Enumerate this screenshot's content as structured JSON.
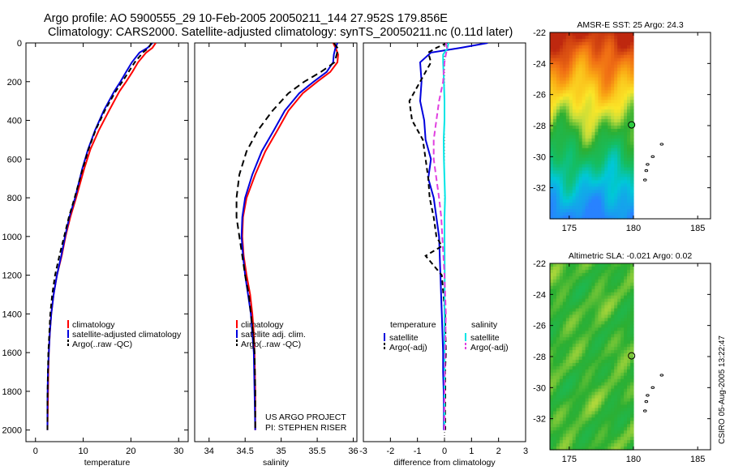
{
  "header": {
    "line1": "Argo profile: AO 5900555_29 10-Feb-2005 20050211_144 27.952S 179.856E",
    "line2": "Climatology: CARS2000. Satellite-adjusted climatology: synTS_20050211.nc (0.11d later)"
  },
  "credit": {
    "line1": "US ARGO PROJECT",
    "line2": "PI: STEPHEN RISER"
  },
  "side_stamp": "CSIRO 05-Aug-2005 13:22:47",
  "colors": {
    "climatology": "#ff0000",
    "satellite": "#0000dd",
    "argo": "#000000",
    "sat_salinity": "#00e5e5",
    "argo_salinity": "#e040e0"
  },
  "chart_data": [
    {
      "id": "temperature",
      "type": "line",
      "xlabel": "temperature",
      "ylabel": "",
      "xlim": [
        -2,
        32
      ],
      "ylim": [
        0,
        2060
      ],
      "y_reversed": true,
      "xticks": [
        0,
        10,
        20,
        30
      ],
      "yticks": [
        0,
        200,
        400,
        600,
        800,
        1000,
        1200,
        1400,
        1600,
        1800,
        2000
      ],
      "legend": {
        "position": "lower-right",
        "entries": [
          "climatology",
          "satellite-adjusted climatology",
          "Argo(..raw -QC)"
        ]
      },
      "series": [
        {
          "name": "climatology",
          "color": "#ff0000",
          "dash": "none",
          "x": [
            25.2,
            24.5,
            23.2,
            21.5,
            20.3,
            19.0,
            17.6,
            15.4,
            13.3,
            11.5,
            10.2,
            8.5,
            7.3,
            6.3,
            5.5,
            4.5,
            3.8,
            3.3,
            3.0,
            2.8,
            2.7,
            2.6,
            2.5
          ],
          "y": [
            0,
            25,
            50,
            100,
            150,
            200,
            250,
            350,
            450,
            550,
            650,
            800,
            900,
            1000,
            1100,
            1200,
            1300,
            1400,
            1500,
            1600,
            1700,
            1850,
            2000
          ]
        },
        {
          "name": "satellite-adjusted climatology",
          "color": "#0000dd",
          "dash": "none",
          "x": [
            24.5,
            23.5,
            21.8,
            20.2,
            19.0,
            17.8,
            16.5,
            14.3,
            12.5,
            11.0,
            9.8,
            8.3,
            7.1,
            6.2,
            5.4,
            4.5,
            3.8,
            3.3,
            3.0,
            2.8,
            2.6,
            2.5,
            2.5
          ],
          "y": [
            0,
            25,
            50,
            100,
            150,
            200,
            250,
            350,
            450,
            550,
            650,
            800,
            900,
            1000,
            1100,
            1200,
            1300,
            1400,
            1500,
            1600,
            1700,
            1850,
            2000
          ]
        },
        {
          "name": "Argo(..raw -QC)",
          "color": "#000000",
          "dash": "6,4",
          "x": [
            24.3,
            23.7,
            22.5,
            20.8,
            19.5,
            18.2,
            16.8,
            14.5,
            12.6,
            11.1,
            9.9,
            8.2,
            7.0,
            6.0,
            5.0,
            4.1,
            3.5,
            3.1,
            2.9,
            2.7,
            2.6,
            2.5,
            2.5
          ],
          "y": [
            0,
            25,
            50,
            100,
            150,
            200,
            250,
            350,
            450,
            550,
            650,
            800,
            900,
            1000,
            1100,
            1200,
            1300,
            1400,
            1500,
            1600,
            1700,
            1850,
            2000
          ]
        }
      ]
    },
    {
      "id": "salinity",
      "type": "line",
      "xlabel": "salinity",
      "ylabel": "",
      "xlim": [
        33.8,
        36.05
      ],
      "ylim": [
        0,
        2060
      ],
      "y_reversed": true,
      "xticks": [
        34,
        34.5,
        35,
        35.5,
        36
      ],
      "yticks": [],
      "legend": {
        "position": "lower-right",
        "entries": [
          "climatology",
          "satellite adj. clim.",
          "Argo(..raw -QC)"
        ]
      },
      "series": [
        {
          "name": "climatology",
          "color": "#ff0000",
          "dash": "none",
          "x": [
            35.72,
            35.76,
            35.79,
            35.78,
            35.68,
            35.5,
            35.3,
            35.1,
            34.95,
            34.78,
            34.64,
            34.52,
            34.47,
            34.46,
            34.48,
            34.52,
            34.57,
            34.6,
            34.62,
            34.63,
            34.64,
            34.64
          ],
          "y": [
            0,
            30,
            60,
            100,
            150,
            200,
            260,
            350,
            450,
            560,
            680,
            800,
            900,
            1000,
            1100,
            1200,
            1300,
            1400,
            1500,
            1600,
            1800,
            2000
          ]
        },
        {
          "name": "satellite adj. clim.",
          "color": "#0000dd",
          "dash": "none",
          "x": [
            35.78,
            35.75,
            35.73,
            35.72,
            35.63,
            35.45,
            35.25,
            35.05,
            34.9,
            34.73,
            34.6,
            34.5,
            34.46,
            34.45,
            34.47,
            34.5,
            34.54,
            34.58,
            34.6,
            34.62,
            34.63,
            34.64
          ],
          "y": [
            0,
            30,
            60,
            100,
            150,
            200,
            260,
            350,
            450,
            560,
            680,
            800,
            900,
            1000,
            1100,
            1200,
            1300,
            1400,
            1500,
            1600,
            1800,
            2000
          ]
        },
        {
          "name": "Argo(..raw -QC)",
          "color": "#000000",
          "dash": "8,5",
          "x": [
            35.73,
            35.79,
            35.77,
            35.74,
            35.55,
            35.32,
            35.1,
            34.88,
            34.68,
            34.52,
            34.42,
            34.38,
            34.38,
            34.42,
            34.46,
            34.5,
            34.55,
            34.58,
            34.61,
            34.63,
            34.64,
            34.64
          ],
          "y": [
            0,
            30,
            60,
            100,
            150,
            200,
            260,
            350,
            450,
            560,
            680,
            800,
            900,
            1000,
            1100,
            1200,
            1300,
            1400,
            1500,
            1600,
            1800,
            2000
          ]
        }
      ]
    },
    {
      "id": "difference",
      "type": "line",
      "xlabel": "difference from climatology",
      "ylabel": "",
      "xlim": [
        -3,
        3
      ],
      "ylim": [
        0,
        2060
      ],
      "y_reversed": true,
      "xticks": [
        -3,
        -2,
        -1,
        0,
        1,
        2,
        3
      ],
      "yticks": [],
      "legend": {
        "position": "lower-center",
        "temperature_title": "temperature",
        "salinity_title": "salinity",
        "entries": [
          "satellite",
          "Argo(-adj)",
          "satellite",
          "Argo(-adj)"
        ]
      },
      "series": [
        {
          "name": "satellite",
          "color": "#0000dd",
          "dash": "none",
          "x": [
            1.6,
            0.6,
            -0.5,
            -0.9,
            -0.85,
            -0.9,
            -0.75,
            -0.7,
            -0.5,
            -0.6,
            -0.4,
            -0.3,
            -0.2,
            -0.15,
            -0.1,
            -0.05,
            -0.05,
            -0.03,
            -0.02,
            -0.02
          ],
          "y": [
            0,
            25,
            50,
            100,
            200,
            300,
            400,
            500,
            600,
            700,
            800,
            900,
            1000,
            1200,
            1400,
            1600,
            1700,
            1800,
            1900,
            2000
          ]
        },
        {
          "name": "Argo(-adj)",
          "color": "#000000",
          "dash": "6,4",
          "x": [
            0.1,
            -0.3,
            -0.6,
            -0.5,
            -0.9,
            -1.3,
            -1.2,
            -0.8,
            -0.7,
            -0.6,
            -0.55,
            -0.4,
            -0.3,
            -0.1,
            -0.7,
            -0.1,
            0.02,
            0.05,
            0.02,
            0.03,
            0.02,
            0.03
          ],
          "y": [
            0,
            25,
            50,
            100,
            200,
            300,
            400,
            500,
            600,
            700,
            800,
            900,
            1000,
            1050,
            1100,
            1200,
            1400,
            1600,
            1700,
            1800,
            1900,
            2000
          ]
        },
        {
          "name": "satellite",
          "color": "#00e5e5",
          "dash": "none",
          "x": [
            0.15,
            0.1,
            -0.05,
            -0.05,
            -0.02,
            0.0,
            0.0,
            -0.03,
            -0.02,
            0.0,
            0.02,
            0.0,
            0.0,
            0.01,
            0.0,
            0.0,
            0.0,
            0.0
          ],
          "y": [
            0,
            30,
            60,
            100,
            200,
            300,
            400,
            500,
            600,
            700,
            800,
            900,
            1000,
            1200,
            1400,
            1600,
            1800,
            2000
          ]
        },
        {
          "name": "Argo(-adj)",
          "color": "#e040e0",
          "dash": "7,4",
          "x": [
            0.05,
            0.1,
            0.05,
            0.0,
            -0.05,
            -0.2,
            -0.3,
            -0.4,
            -0.4,
            -0.3,
            -0.2,
            -0.12,
            -0.08,
            0.0,
            0.05,
            0.02,
            0.0,
            0.0
          ],
          "y": [
            0,
            30,
            60,
            100,
            200,
            300,
            400,
            500,
            600,
            700,
            800,
            900,
            1000,
            1200,
            1400,
            1600,
            1800,
            2000
          ]
        }
      ]
    },
    {
      "id": "sst_map",
      "type": "heatmap",
      "title": "AMSR-E SST: 25 Argo: 24.3",
      "xlim": [
        173.5,
        186
      ],
      "ylim": [
        -34,
        -22
      ],
      "xticks": [
        175,
        180,
        185
      ],
      "yticks": [
        -22,
        -24,
        -26,
        -28,
        -30,
        -32
      ],
      "data_lon_max": 180,
      "marker": {
        "lon": 179.856,
        "lat": -27.952
      },
      "islands": [
        [
          182.2,
          -29.2
        ],
        [
          181.5,
          -30.0
        ],
        [
          181.1,
          -30.5
        ],
        [
          181.0,
          -30.9
        ],
        [
          180.9,
          -31.5
        ]
      ]
    },
    {
      "id": "sla_map",
      "type": "heatmap",
      "title": "Altimetric SLA: -0.021 Argo: 0.02",
      "xlim": [
        173.5,
        186
      ],
      "ylim": [
        -34,
        -22
      ],
      "xticks": [
        175,
        180,
        185
      ],
      "yticks": [
        -22,
        -24,
        -26,
        -28,
        -30,
        -32
      ],
      "data_lon_max": 180,
      "marker": {
        "lon": 179.856,
        "lat": -27.952
      },
      "islands": [
        [
          182.2,
          -29.2
        ],
        [
          181.5,
          -30.0
        ],
        [
          181.1,
          -30.5
        ],
        [
          181.0,
          -30.9
        ],
        [
          180.9,
          -31.5
        ]
      ]
    }
  ]
}
